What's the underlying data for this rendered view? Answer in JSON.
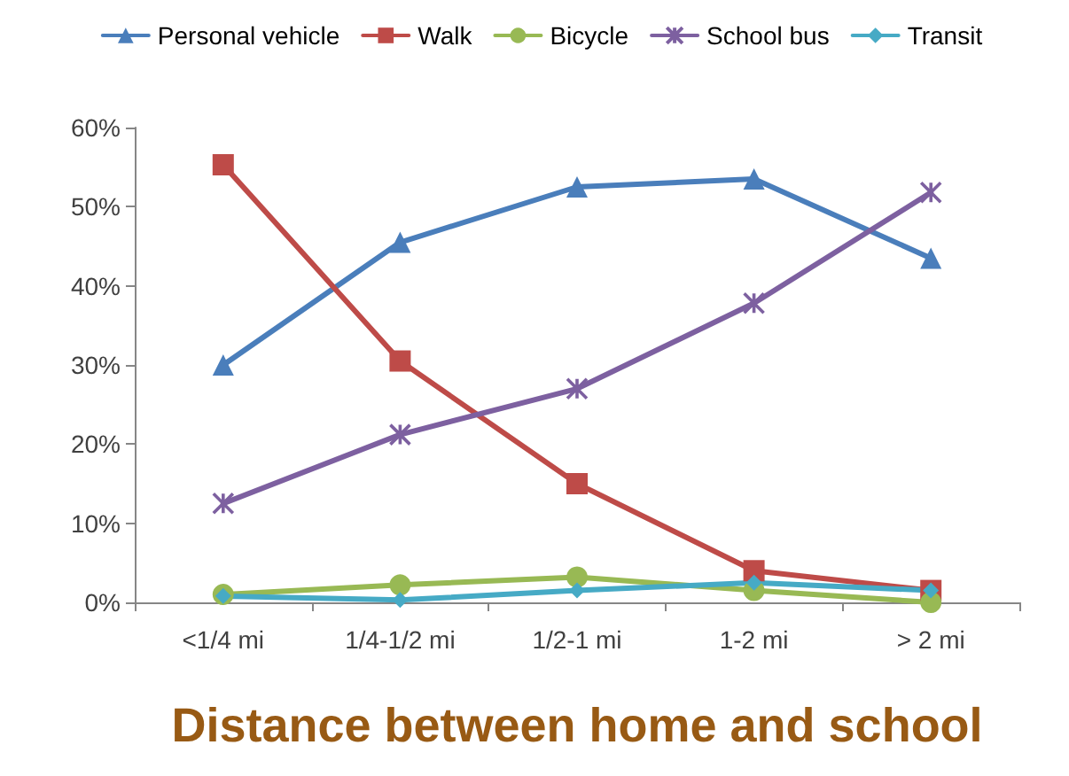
{
  "chart_data": {
    "type": "line",
    "xlabel": "Distance between home and school",
    "categories": [
      "<1/4 mi",
      "1/4-1/2 mi",
      "1/2-1 mi",
      "1-2 mi",
      "> 2 mi"
    ],
    "series": [
      {
        "name": "Personal vehicle",
        "color": "#4a7ebb",
        "marker": "triangle",
        "values": [
          30,
          45.5,
          52.5,
          53.5,
          43.5
        ]
      },
      {
        "name": "Walk",
        "color": "#be4b48",
        "marker": "square",
        "values": [
          55.3,
          30.5,
          15,
          4,
          1.5
        ]
      },
      {
        "name": "Bicycle",
        "color": "#98b954",
        "marker": "circle",
        "values": [
          1,
          2.2,
          3.2,
          1.5,
          0
        ]
      },
      {
        "name": "School bus",
        "color": "#7d60a0",
        "marker": "cross",
        "values": [
          12.5,
          21.2,
          27,
          37.8,
          51.8
        ]
      },
      {
        "name": "Transit",
        "color": "#46aac5",
        "marker": "diamond",
        "values": [
          0.8,
          0.3,
          1.5,
          2.5,
          1.5
        ]
      }
    ],
    "ylim": [
      0,
      60
    ],
    "yticks": [
      {
        "value": 0,
        "label": "0%"
      },
      {
        "value": 10,
        "label": "10%"
      },
      {
        "value": 20,
        "label": "20%"
      },
      {
        "value": 30,
        "label": "30%"
      },
      {
        "value": 40,
        "label": "40%"
      },
      {
        "value": 50,
        "label": "50%"
      },
      {
        "value": 60,
        "label": "60%"
      }
    ],
    "grid": false,
    "legend": "top"
  }
}
